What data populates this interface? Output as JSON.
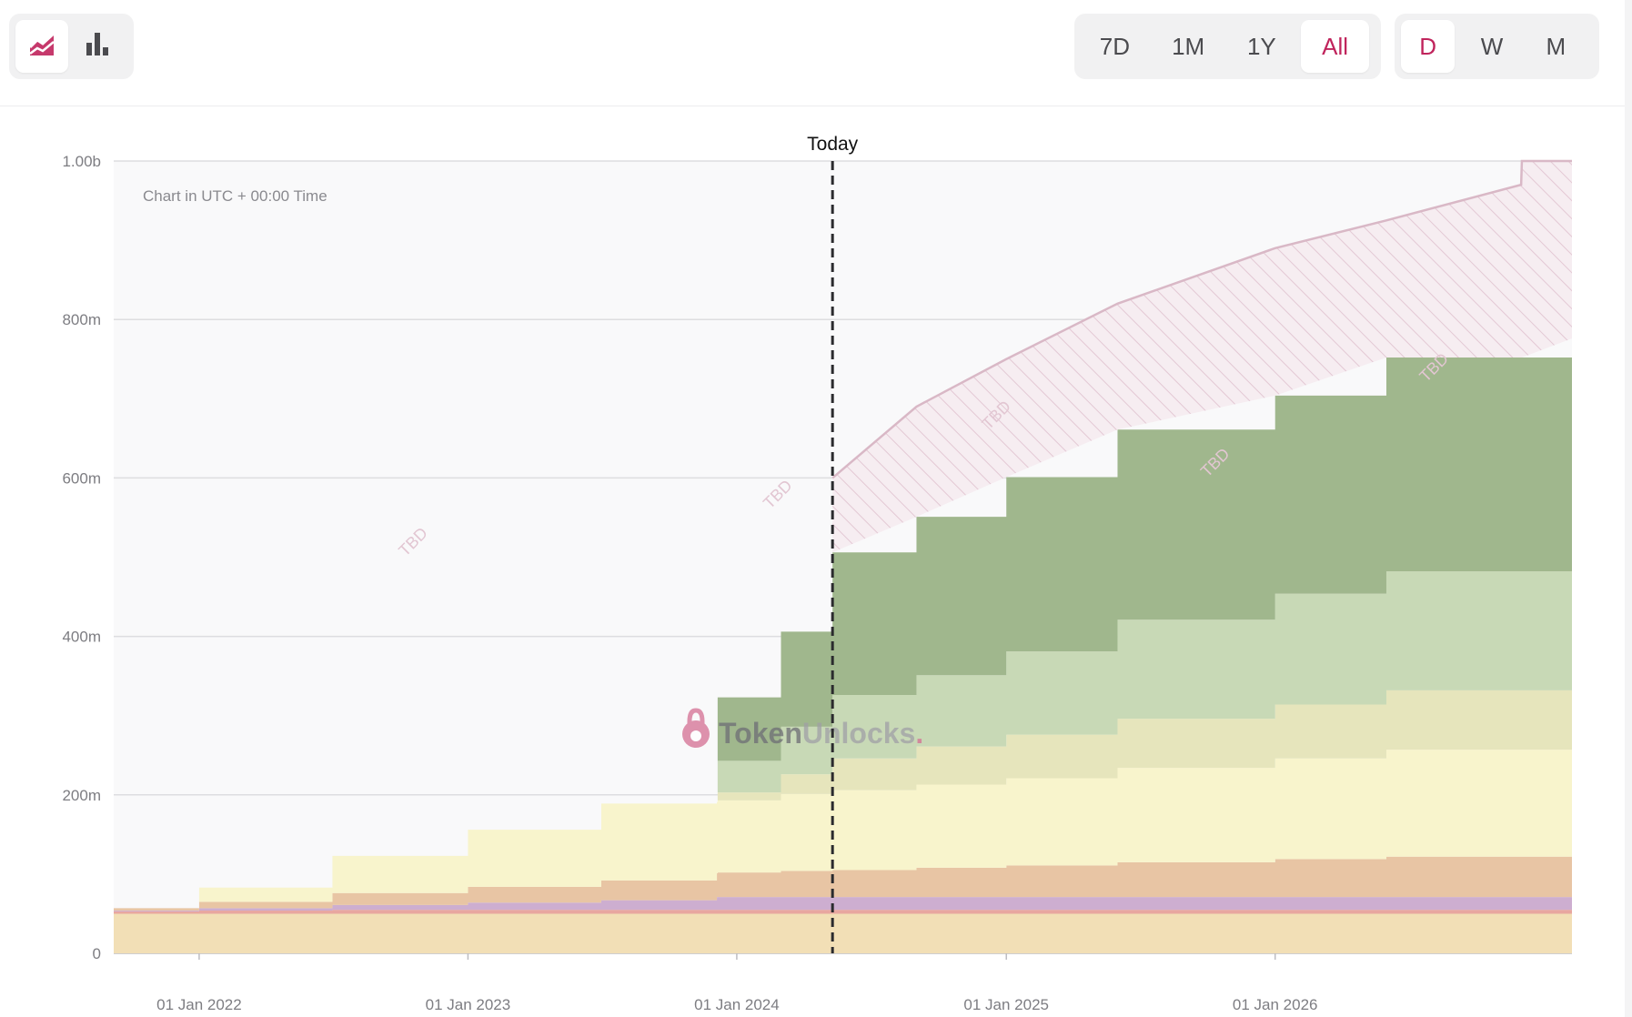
{
  "toolbar": {
    "chart_types": [
      {
        "name": "area",
        "icon": "area-chart-icon",
        "active": true
      },
      {
        "name": "bar",
        "icon": "bar-chart-icon",
        "active": false
      }
    ],
    "ranges": [
      "7D",
      "1M",
      "1Y",
      "All"
    ],
    "active_range": "All",
    "frequencies": [
      "D",
      "W",
      "M"
    ],
    "active_frequency": "D",
    "accent_color": "#c0245c"
  },
  "watermark": {
    "text_a": "Token",
    "text_b": "Unlocks",
    "dot": "."
  },
  "chart_data": {
    "type": "area",
    "stacked": true,
    "note": "Chart in UTC + 00:00 Time",
    "today_label": "Today",
    "today_date": "2024-05-10",
    "tbd_label": "TBD",
    "x_ticks": [
      "01 Jan 2022",
      "01 Jan 2023",
      "01 Jan 2024",
      "01 Jan 2025",
      "01 Jan 2026"
    ],
    "x_tick_dates": [
      "2022-01-01",
      "2023-01-01",
      "2024-01-01",
      "2025-01-01",
      "2026-01-01"
    ],
    "x_range": [
      "2021-09-07",
      "2027-02-08"
    ],
    "y_ticks": [
      "0",
      "200m",
      "400m",
      "600m",
      "800m",
      "1.00b"
    ],
    "y_tick_values": [
      0,
      200,
      400,
      600,
      800,
      1000
    ],
    "ylim": [
      0,
      1000
    ],
    "y_unit": "m",
    "grid": true,
    "x": [
      "2021-09-07",
      "2022-01-01",
      "2022-07-01",
      "2023-01-01",
      "2023-07-01",
      "2023-12-05",
      "2023-12-06",
      "2024-03-01",
      "2024-05-10",
      "2024-09-01",
      "2025-01-01",
      "2025-06-01",
      "2026-01-01",
      "2026-06-01",
      "2027-02-08"
    ],
    "series": [
      {
        "color": "#f2dfb6",
        "values": [
          50,
          50,
          50,
          50,
          50,
          50,
          50,
          50,
          50,
          50,
          50,
          50,
          50,
          50,
          50
        ]
      },
      {
        "color": "#e8a7a0",
        "values": [
          3,
          4,
          5,
          5,
          5,
          5,
          5,
          5,
          5,
          5,
          5,
          5,
          5,
          5,
          5
        ]
      },
      {
        "color": "#cdaed0",
        "values": [
          1,
          3,
          6,
          9,
          12,
          16,
          16,
          16,
          16,
          16,
          16,
          16,
          16,
          16,
          16
        ]
      },
      {
        "color": "#e8c5a4",
        "values": [
          3,
          8,
          15,
          20,
          25,
          30,
          31,
          33,
          34,
          37,
          40,
          44,
          48,
          51,
          55
        ]
      },
      {
        "color": "#f8f4cc",
        "values": [
          0,
          18,
          47,
          72,
          97,
          90,
          91,
          97,
          101,
          105,
          110,
          119,
          127,
          135,
          145
        ]
      },
      {
        "color": "#e6e5bc",
        "values": [
          0,
          0,
          0,
          0,
          0,
          0,
          10,
          25,
          40,
          48,
          55,
          62,
          68,
          75,
          70
        ]
      },
      {
        "color": "#c8d9b6",
        "values": [
          0,
          0,
          0,
          0,
          0,
          0,
          40,
          60,
          80,
          90,
          105,
          125,
          140,
          150,
          155
        ]
      },
      {
        "color": "#a0b78d",
        "values": [
          0,
          0,
          0,
          0,
          0,
          0,
          80,
          120,
          180,
          200,
          220,
          240,
          250,
          270,
          280
        ]
      }
    ],
    "tbd": {
      "color": "#d9b8c6",
      "x": [
        "2024-05-10",
        "2024-09-01",
        "2025-01-01",
        "2025-06-01",
        "2026-01-01",
        "2026-06-01",
        "2026-12-01",
        "2026-12-02",
        "2027-02-08"
      ],
      "top": [
        600,
        690,
        750,
        820,
        890,
        925,
        970,
        1000,
        1000
      ]
    }
  }
}
